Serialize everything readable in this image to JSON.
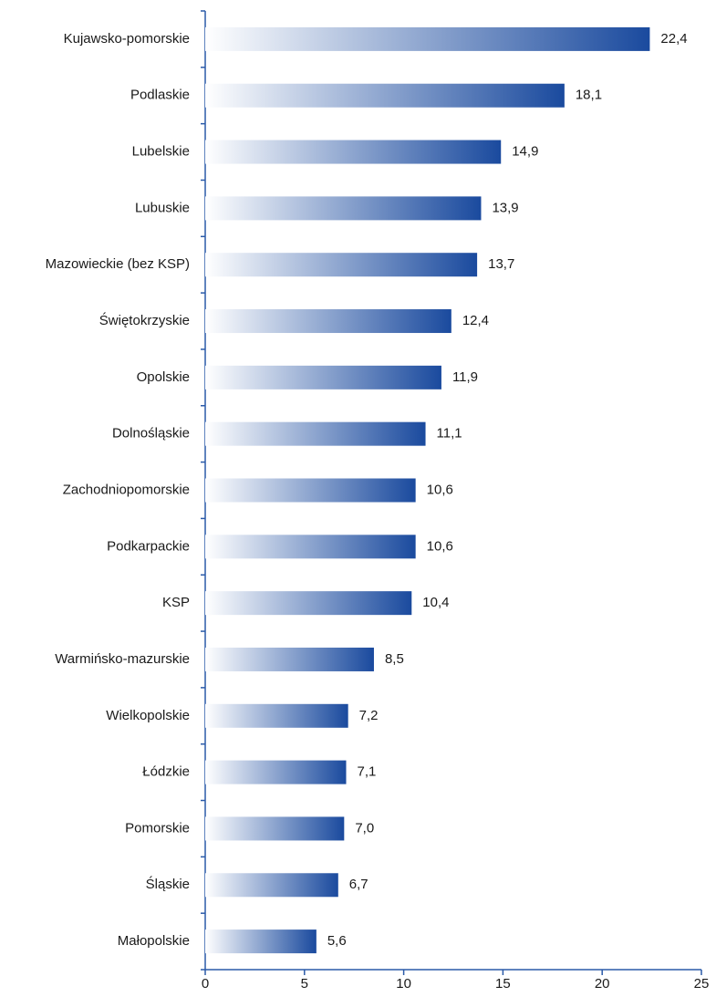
{
  "chart_data": {
    "type": "bar",
    "orientation": "horizontal",
    "categories": [
      "Kujawsko-pomorskie",
      "Podlaskie",
      "Lubelskie",
      "Lubuskie",
      "Mazowieckie (bez KSP)",
      "Świętokrzyskie",
      "Opolskie",
      "Dolnośląskie",
      "Zachodniopomorskie",
      "Podkarpackie",
      "KSP",
      "Warmińsko-mazurskie",
      "Wielkopolskie",
      "Łódzkie",
      "Pomorskie",
      "Śląskie",
      "Małopolskie"
    ],
    "values": [
      22.4,
      18.1,
      14.9,
      13.9,
      13.7,
      12.4,
      11.9,
      11.1,
      10.6,
      10.6,
      10.4,
      8.5,
      7.2,
      7.1,
      7.0,
      6.7,
      5.6
    ],
    "value_labels": [
      "22,4",
      "18,1",
      "14,9",
      "13,9",
      "13,7",
      "12,4",
      "11,9",
      "11,1",
      "10,6",
      "10,6",
      "10,4",
      "8,5",
      "7,2",
      "7,1",
      "7,0",
      "6,7",
      "5,6"
    ],
    "color": "#1a4a9e",
    "xlim": [
      0,
      25
    ],
    "xticks": [
      0,
      5,
      10,
      15,
      20,
      25
    ]
  }
}
